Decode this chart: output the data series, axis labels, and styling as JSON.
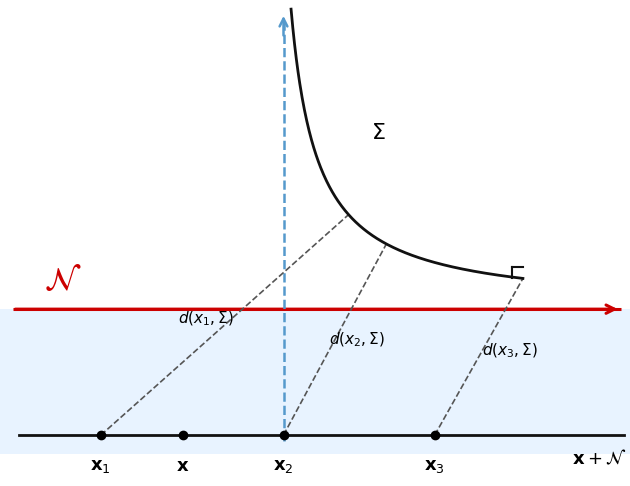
{
  "figsize": [
    6.3,
    4.86
  ],
  "dpi": 100,
  "bg_color": "#ffffff",
  "half_plane_color": "#ddeeff",
  "red_line_color": "#cc0000",
  "blue_dashed_color": "#5599cc",
  "curve_color": "#111111",
  "bottom_line_color": "#111111",
  "dashed_line_color": "#555555",
  "N_label_color": "#cc0000",
  "N_label": "$\\mathcal{N}$",
  "Sigma_label": "$\\Sigma$",
  "xN_label": "$\\mathbf{x} + \\mathcal{N}$",
  "x1_label": "$\\mathbf{x}_1$",
  "x_label": "$\\mathbf{x}$",
  "x2_label": "$\\mathbf{x}_2$",
  "x3_label": "$\\mathbf{x}_3$",
  "d1_label": "$d(x_1, \\Sigma)$",
  "d2_label": "$d(x_2, \\Sigma)$",
  "d3_label": "$d(x_3, \\Sigma)$"
}
